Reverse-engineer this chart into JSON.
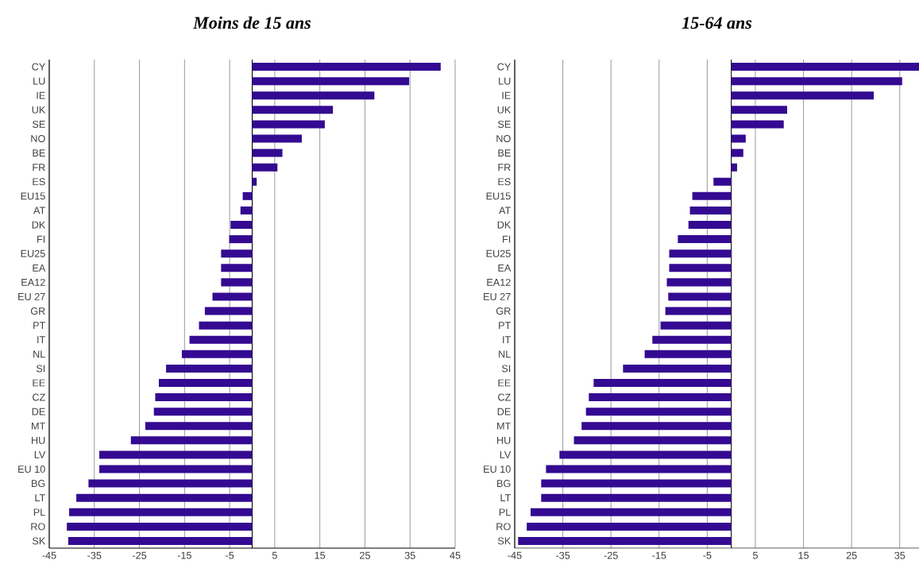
{
  "chart_data": [
    {
      "type": "bar",
      "orientation": "horizontal",
      "title": "Moins de 15 ans",
      "categories": [
        "CY",
        "LU",
        "IE",
        "UK",
        "SE",
        "NO",
        "BE",
        "FR",
        "ES",
        "EU15",
        "AT",
        "DK",
        "FI",
        "EU25",
        "EA",
        "EA12",
        "EU 27",
        "GR",
        "PT",
        "IT",
        "NL",
        "SI",
        "EE",
        "CZ",
        "DE",
        "MT",
        "HU",
        "LV",
        "EU 10",
        "BG",
        "LT",
        "PL",
        "RO",
        "SK"
      ],
      "values": [
        41.8,
        34.8,
        27.1,
        17.9,
        16.1,
        11.0,
        6.7,
        5.6,
        1.0,
        -2.1,
        -2.6,
        -4.8,
        -5.1,
        -6.9,
        -6.9,
        -6.9,
        -8.8,
        -10.5,
        -11.8,
        -13.9,
        -15.6,
        -19.1,
        -20.7,
        -21.5,
        -21.8,
        -23.7,
        -26.9,
        -33.9,
        -33.9,
        -36.3,
        -39.0,
        -40.6,
        -41.1,
        -40.8
      ],
      "color": "#330a91",
      "xlim": [
        -45,
        45
      ],
      "xticks": [
        -45,
        -35,
        -25,
        -15,
        -5,
        5,
        15,
        25,
        35,
        45
      ],
      "grid": "x",
      "ref_lines": [
        {
          "axis": "x",
          "value": 0,
          "color": "#000000"
        }
      ]
    },
    {
      "type": "bar",
      "orientation": "horizontal",
      "title": "15-64 ans",
      "categories": [
        "CY",
        "LU",
        "IE",
        "UK",
        "SE",
        "NO",
        "BE",
        "FR",
        "ES",
        "EU15",
        "AT",
        "DK",
        "FI",
        "EU25",
        "EA",
        "EA12",
        "EU 27",
        "GR",
        "PT",
        "IT",
        "NL",
        "SI",
        "EE",
        "CZ",
        "DE",
        "MT",
        "HU",
        "LV",
        "EU 10",
        "BG",
        "LT",
        "PL",
        "RO",
        "SK"
      ],
      "values": [
        39,
        35.5,
        29.6,
        11.6,
        10.9,
        3.0,
        2.5,
        1.2,
        -3.7,
        -8.1,
        -8.6,
        -8.9,
        -11.1,
        -12.9,
        -12.9,
        -13.4,
        -13.1,
        -13.7,
        -14.7,
        -16.4,
        -18.0,
        -22.5,
        -28.6,
        -29.6,
        -30.2,
        -31.1,
        -32.7,
        -35.7,
        -38.5,
        -39.5,
        -39.5,
        -41.7,
        -42.5,
        -44.3
      ],
      "color": "#330a91",
      "xlim": [
        -45,
        39
      ],
      "xticks": [
        -45,
        -35,
        -25,
        -15,
        -5,
        5,
        15,
        25,
        35
      ],
      "grid": "x",
      "ref_lines": [
        {
          "axis": "x",
          "value": 0,
          "color": "#000000"
        }
      ]
    }
  ]
}
